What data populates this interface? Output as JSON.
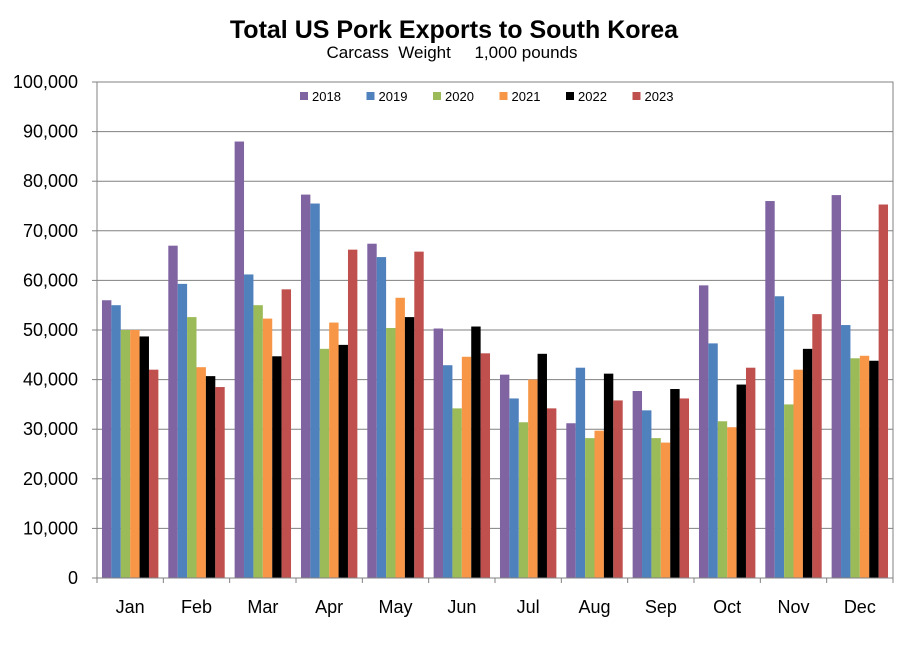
{
  "chart_data": {
    "type": "bar",
    "title": "Total US Pork Exports to South Korea",
    "subtitle": "Carcass  Weight     1,000 pounds",
    "xlabel": "",
    "ylabel": "",
    "ylim": [
      0,
      100000
    ],
    "yticks": [
      0,
      10000,
      20000,
      30000,
      40000,
      50000,
      60000,
      70000,
      80000,
      90000,
      100000
    ],
    "ytick_labels": [
      "0",
      "10,000",
      "20,000",
      "30,000",
      "40,000",
      "50,000",
      "60,000",
      "70,000",
      "80,000",
      "90,000",
      "100,000"
    ],
    "grid": true,
    "legend_position": "top-center",
    "categories": [
      "Jan",
      "Feb",
      "Mar",
      "Apr",
      "May",
      "Jun",
      "Jul",
      "Aug",
      "Sep",
      "Oct",
      "Nov",
      "Dec"
    ],
    "series": [
      {
        "name": "2018",
        "color": "#8064A2",
        "values": [
          56000,
          67000,
          88000,
          77300,
          67400,
          50300,
          41000,
          31200,
          37700,
          59000,
          76000,
          77200
        ]
      },
      {
        "name": "2019",
        "color": "#4F81BD",
        "values": [
          55000,
          59300,
          61200,
          75500,
          64700,
          42900,
          36200,
          42400,
          33800,
          47300,
          56800,
          51000
        ]
      },
      {
        "name": "2020",
        "color": "#9BBB59",
        "values": [
          50000,
          52600,
          55000,
          46200,
          50400,
          34200,
          31400,
          28200,
          28200,
          31600,
          35000,
          44300
        ]
      },
      {
        "name": "2021",
        "color": "#F79646",
        "values": [
          50000,
          42500,
          52300,
          51500,
          56500,
          44600,
          40000,
          29700,
          27300,
          30400,
          42000,
          44800
        ]
      },
      {
        "name": "2022",
        "color": "#000000",
        "values": [
          48700,
          40700,
          44700,
          47000,
          52600,
          50700,
          45200,
          41200,
          38100,
          39000,
          46200,
          43800
        ]
      },
      {
        "name": "2023",
        "color": "#C0504D",
        "values": [
          42000,
          38500,
          58200,
          66200,
          65800,
          45300,
          34200,
          35800,
          36200,
          42400,
          53200,
          75300
        ]
      }
    ]
  }
}
